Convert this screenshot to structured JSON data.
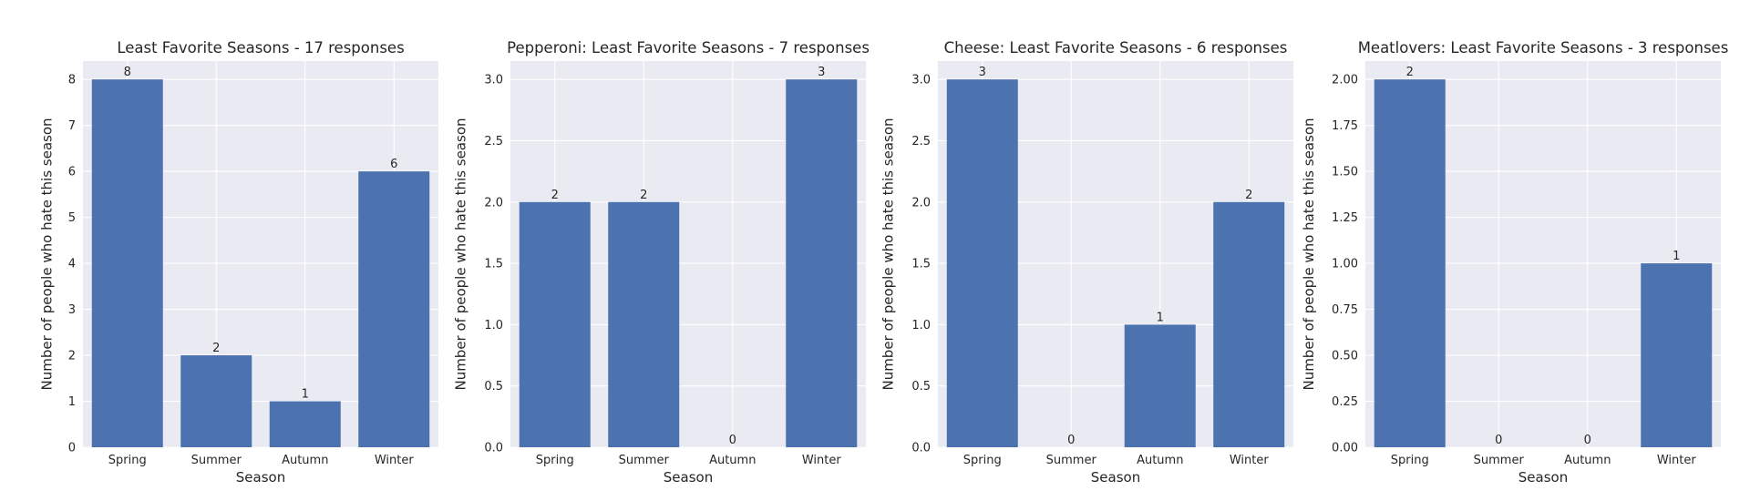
{
  "figure": {
    "background": "#ffffff",
    "plot_background": "#eaeaf2",
    "grid_color": "#ffffff",
    "bar_color": "#4c72b0",
    "text_color": "#262626"
  },
  "chart_data": [
    {
      "type": "bar",
      "title": "Least Favorite Seasons - 17 responses",
      "xlabel": "Season",
      "ylabel": "Number of people who hate this season",
      "categories": [
        "Spring",
        "Summer",
        "Autumn",
        "Winter"
      ],
      "values": [
        8,
        2,
        1,
        6
      ],
      "data_labels": [
        "8",
        "2",
        "1",
        "6"
      ],
      "ylim": [
        0,
        8.4
      ],
      "yticks": [
        0,
        1,
        2,
        3,
        4,
        5,
        6,
        7,
        8
      ],
      "ytick_labels": [
        "0",
        "1",
        "2",
        "3",
        "4",
        "5",
        "6",
        "7",
        "8"
      ],
      "grid": true
    },
    {
      "type": "bar",
      "title": "Pepperoni: Least Favorite Seasons - 7 responses",
      "xlabel": "Season",
      "ylabel": "Number of people who hate this season",
      "categories": [
        "Spring",
        "Summer",
        "Autumn",
        "Winter"
      ],
      "values": [
        2,
        2,
        0,
        3
      ],
      "data_labels": [
        "2",
        "2",
        "0",
        "3"
      ],
      "ylim": [
        0,
        3.15
      ],
      "yticks": [
        0,
        0.5,
        1,
        1.5,
        2,
        2.5,
        3
      ],
      "ytick_labels": [
        "0.0",
        "0.5",
        "1.0",
        "1.5",
        "2.0",
        "2.5",
        "3.0"
      ],
      "grid": true
    },
    {
      "type": "bar",
      "title": "Cheese: Least Favorite Seasons - 6 responses",
      "xlabel": "Season",
      "ylabel": "Number of people who hate this season",
      "categories": [
        "Spring",
        "Summer",
        "Autumn",
        "Winter"
      ],
      "values": [
        3,
        0,
        1,
        2
      ],
      "data_labels": [
        "3",
        "0",
        "1",
        "2"
      ],
      "ylim": [
        0,
        3.15
      ],
      "yticks": [
        0,
        0.5,
        1,
        1.5,
        2,
        2.5,
        3
      ],
      "ytick_labels": [
        "0.0",
        "0.5",
        "1.0",
        "1.5",
        "2.0",
        "2.5",
        "3.0"
      ],
      "grid": true
    },
    {
      "type": "bar",
      "title": "Meatlovers: Least Favorite Seasons - 3 responses",
      "xlabel": "Season",
      "ylabel": "Number of people who hate this season",
      "categories": [
        "Spring",
        "Summer",
        "Autumn",
        "Winter"
      ],
      "values": [
        2,
        0,
        0,
        1
      ],
      "data_labels": [
        "2",
        "0",
        "0",
        "1"
      ],
      "ylim": [
        0,
        2.1
      ],
      "yticks": [
        0,
        0.25,
        0.5,
        0.75,
        1,
        1.25,
        1.5,
        1.75,
        2
      ],
      "ytick_labels": [
        "0.00",
        "0.25",
        "0.50",
        "0.75",
        "1.00",
        "1.25",
        "1.50",
        "1.75",
        "2.00"
      ],
      "grid": true
    }
  ]
}
